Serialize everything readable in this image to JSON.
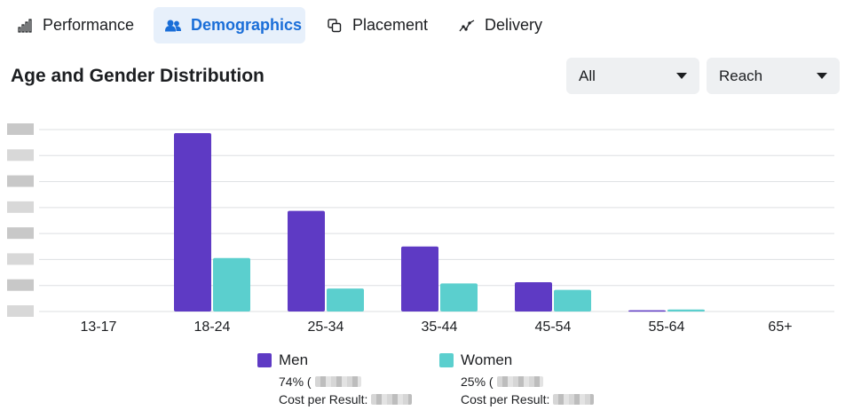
{
  "tabs": [
    {
      "label": "Performance",
      "icon": "bar-chart-icon",
      "active": false
    },
    {
      "label": "Demographics",
      "icon": "people-icon",
      "active": true
    },
    {
      "label": "Placement",
      "icon": "placement-icon",
      "active": false
    },
    {
      "label": "Delivery",
      "icon": "delivery-icon",
      "active": false
    }
  ],
  "section": {
    "title": "Age and Gender Distribution"
  },
  "filters": {
    "audience": "All",
    "metric": "Reach"
  },
  "colors": {
    "men": "#5e3ac4",
    "women": "#5bcfce",
    "accent": "#1a6ed8",
    "grid": "#dddfe2"
  },
  "chart_data": {
    "type": "bar",
    "categories": [
      "13-17",
      "18-24",
      "25-34",
      "35-44",
      "45-54",
      "55-64",
      "65+"
    ],
    "series": [
      {
        "name": "Men",
        "values": [
          0,
          70,
          39.5,
          25.5,
          11.5,
          0.5,
          0
        ]
      },
      {
        "name": "Women",
        "values": [
          0,
          21,
          9,
          11,
          8.5,
          0.8,
          0
        ]
      }
    ],
    "ylim": [
      0,
      70
    ],
    "grid": true,
    "legend_position": "bottom"
  },
  "legend": {
    "men": {
      "label": "Men",
      "share": "74% (",
      "cost_label": "Cost per Result:"
    },
    "women": {
      "label": "Women",
      "share": "25% (",
      "cost_label": "Cost per Result:"
    }
  }
}
